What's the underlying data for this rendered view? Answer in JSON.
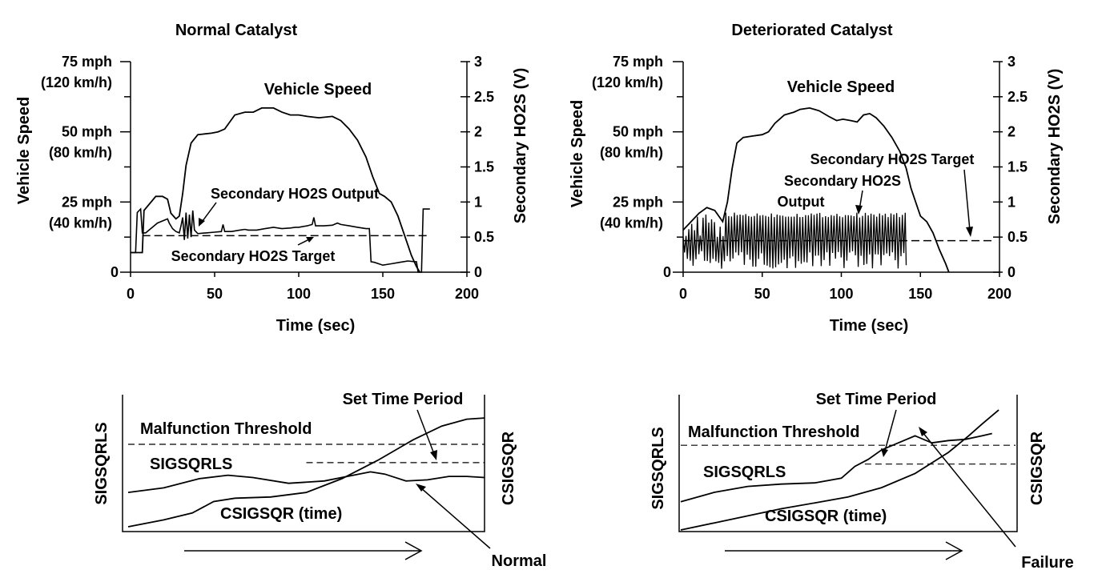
{
  "chart_data": [
    {
      "type": "line",
      "title": "Normal Catalyst",
      "xlabel": "Time (sec)",
      "ylabel_left": "Vehicle Speed",
      "ylabel_right": "Secondary HO2S (V)",
      "xlim": [
        0,
        200
      ],
      "ylim_right": [
        0,
        3
      ],
      "x_ticks": [
        "0",
        "50",
        "100",
        "150",
        "200"
      ],
      "left_ticks": [
        {
          "value": 75,
          "label": "75 mph",
          "sub": "(120 km/h)"
        },
        {
          "value": 50,
          "label": "50 mph",
          "sub": "(80 km/h)"
        },
        {
          "value": 25,
          "label": "25 mph",
          "sub": "(40 km/h)"
        },
        {
          "value": 0,
          "label": "0",
          "sub": ""
        }
      ],
      "right_ticks": [
        "0",
        "0.5",
        "1",
        "1.5",
        "2",
        "2.5",
        "3"
      ],
      "annotations": [
        "Vehicle Speed",
        "Secondary HO2S Output",
        "Secondary HO2S Target"
      ],
      "series": [
        {
          "name": "Vehicle Speed",
          "unit": "mph",
          "points": [
            [
              0,
              7
            ],
            [
              5,
              7
            ],
            [
              7,
              7
            ],
            [
              8,
              22
            ],
            [
              15,
              27
            ],
            [
              19,
              27
            ],
            [
              22,
              26
            ],
            [
              24,
              21
            ],
            [
              27,
              19
            ],
            [
              29,
              20
            ],
            [
              31,
              28
            ],
            [
              33,
              38
            ],
            [
              36,
              46
            ],
            [
              40,
              49
            ],
            [
              48,
              49.5
            ],
            [
              52,
              50
            ],
            [
              56,
              51
            ],
            [
              62,
              56
            ],
            [
              68,
              57
            ],
            [
              73,
              57
            ],
            [
              78,
              58.5
            ],
            [
              85,
              58.5
            ],
            [
              90,
              57
            ],
            [
              95,
              56
            ],
            [
              100,
              56
            ],
            [
              105,
              55.5
            ],
            [
              112,
              55
            ],
            [
              120,
              55.5
            ],
            [
              125,
              54
            ],
            [
              130,
              51
            ],
            [
              135,
              47
            ],
            [
              140,
              41
            ],
            [
              144,
              34
            ],
            [
              148,
              28
            ],
            [
              151,
              27
            ],
            [
              155,
              25
            ],
            [
              159,
              20
            ],
            [
              163,
              13
            ],
            [
              167,
              6
            ],
            [
              170,
              2
            ],
            [
              172,
              0
            ]
          ]
        },
        {
          "name": "Secondary HO2S Output",
          "unit": "V",
          "points": [
            [
              0,
              0.28
            ],
            [
              3,
              0.28
            ],
            [
              4,
              0.85
            ],
            [
              6,
              0.9
            ],
            [
              7,
              0.56
            ],
            [
              9,
              0.56
            ],
            [
              12,
              0.62
            ],
            [
              14,
              0.66
            ],
            [
              16,
              0.7
            ],
            [
              18,
              0.72
            ],
            [
              20,
              0.74
            ],
            [
              22,
              0.76
            ],
            [
              23,
              0.7
            ],
            [
              25,
              0.62
            ],
            [
              27,
              0.58
            ],
            [
              29,
              0.56
            ],
            [
              30,
              0.66
            ],
            [
              31,
              0.78
            ],
            [
              32,
              0.46
            ],
            [
              33,
              0.85
            ],
            [
              34,
              0.48
            ],
            [
              35,
              0.82
            ],
            [
              36,
              0.5
            ],
            [
              37,
              0.88
            ],
            [
              38,
              0.6
            ],
            [
              40,
              0.55
            ],
            [
              45,
              0.56
            ],
            [
              50,
              0.57
            ],
            [
              54,
              0.58
            ],
            [
              55,
              0.68
            ],
            [
              56,
              0.58
            ],
            [
              60,
              0.58
            ],
            [
              65,
              0.6
            ],
            [
              68,
              0.61
            ],
            [
              70,
              0.6
            ],
            [
              75,
              0.6
            ],
            [
              80,
              0.62
            ],
            [
              85,
              0.64
            ],
            [
              90,
              0.62
            ],
            [
              95,
              0.63
            ],
            [
              98,
              0.64
            ],
            [
              100,
              0.64
            ],
            [
              105,
              0.66
            ],
            [
              108,
              0.68
            ],
            [
              109,
              0.78
            ],
            [
              110,
              0.66
            ],
            [
              115,
              0.66
            ],
            [
              120,
              0.67
            ],
            [
              123,
              0.7
            ],
            [
              125,
              0.68
            ],
            [
              130,
              0.66
            ],
            [
              135,
              0.64
            ],
            [
              140,
              0.62
            ],
            [
              142,
              0.62
            ],
            [
              143,
              0.15
            ],
            [
              145,
              0.14
            ],
            [
              150,
              0.1
            ],
            [
              155,
              0.12
            ],
            [
              160,
              0.14
            ],
            [
              165,
              0.16
            ],
            [
              169,
              0.15
            ],
            [
              170,
              0.15
            ],
            [
              171,
              0.0
            ],
            [
              173,
              0.0
            ],
            [
              174,
              0.9
            ],
            [
              178,
              0.9
            ]
          ]
        },
        {
          "name": "Secondary HO2S Target",
          "unit": "V",
          "points": [
            [
              7,
              0.52
            ],
            [
              178,
              0.52
            ]
          ]
        }
      ]
    },
    {
      "type": "line",
      "title": "Deteriorated Catalyst",
      "xlabel": "Time (sec)",
      "ylabel_left": "Vehicle Speed",
      "ylabel_right": "Secondary HO2S (V)",
      "xlim": [
        0,
        200
      ],
      "ylim_right": [
        0,
        3
      ],
      "x_ticks": [
        "0",
        "50",
        "100",
        "150",
        "200"
      ],
      "left_ticks": [
        {
          "value": 75,
          "label": "75 mph",
          "sub": "(120 km/h)"
        },
        {
          "value": 50,
          "label": "50 mph",
          "sub": "(80 km/h)"
        },
        {
          "value": 25,
          "label": "25 mph",
          "sub": "(40 km/h)"
        },
        {
          "value": 0,
          "label": "0",
          "sub": ""
        }
      ],
      "right_ticks": [
        "0",
        "0.5",
        "1",
        "1.5",
        "2",
        "2.5",
        "3"
      ],
      "annotations": [
        "Vehicle Speed",
        "Secondary HO2S Target",
        "Secondary HO2S",
        "Output"
      ],
      "series": [
        {
          "name": "Vehicle Speed",
          "unit": "mph",
          "points": [
            [
              0,
              15
            ],
            [
              5,
              18
            ],
            [
              10,
              21
            ],
            [
              15,
              23
            ],
            [
              20,
              22
            ],
            [
              25,
              18
            ],
            [
              28,
              25
            ],
            [
              31,
              37
            ],
            [
              34,
              46
            ],
            [
              38,
              48
            ],
            [
              44,
              48.5
            ],
            [
              50,
              49
            ],
            [
              54,
              50
            ],
            [
              58,
              53
            ],
            [
              64,
              56
            ],
            [
              70,
              57
            ],
            [
              74,
              58
            ],
            [
              80,
              58.5
            ],
            [
              86,
              57.5
            ],
            [
              92,
              55.5
            ],
            [
              97,
              54
            ],
            [
              101,
              54.5
            ],
            [
              106,
              54
            ],
            [
              110,
              53.5
            ],
            [
              114,
              56
            ],
            [
              118,
              56.5
            ],
            [
              122,
              55
            ],
            [
              127,
              52
            ],
            [
              132,
              48
            ],
            [
              137,
              43
            ],
            [
              141,
              37
            ],
            [
              144,
              30
            ],
            [
              147,
              25
            ],
            [
              150,
              20
            ],
            [
              154,
              18
            ],
            [
              158,
              14
            ],
            [
              162,
              8
            ],
            [
              166,
              3
            ],
            [
              168,
              0
            ]
          ]
        },
        {
          "name": "Secondary HO2S Output",
          "unit": "V",
          "oscillating": true,
          "time_range": [
            0,
            141
          ],
          "range_v": [
            0.05,
            0.85
          ]
        },
        {
          "name": "Secondary HO2S Target",
          "unit": "V",
          "points": [
            [
              0,
              0.45
            ],
            [
              197,
              0.45
            ]
          ]
        }
      ]
    },
    {
      "type": "line",
      "title": "",
      "xlabel": "",
      "ylabel_left": "SIGSQRLS",
      "ylabel_right": "CSIGSQR",
      "labels": {
        "threshold": "Malfunction Threshold",
        "set_time": "Set Time Period",
        "sigsqrls": "SIGSQRLS",
        "csigsqr": "CSIGSQR (time)",
        "result": "Normal"
      },
      "series": [
        {
          "name": "SIGSQRLS",
          "points": [
            [
              0,
              0.3
            ],
            [
              0.1,
              0.34
            ],
            [
              0.2,
              0.42
            ],
            [
              0.28,
              0.45
            ],
            [
              0.35,
              0.43
            ],
            [
              0.45,
              0.38
            ],
            [
              0.55,
              0.4
            ],
            [
              0.68,
              0.48
            ],
            [
              0.72,
              0.46
            ],
            [
              0.78,
              0.4
            ],
            [
              0.84,
              0.41
            ],
            [
              0.9,
              0.44
            ],
            [
              0.95,
              0.44
            ],
            [
              1,
              0.43
            ]
          ]
        },
        {
          "name": "CSIGSQR (time)",
          "points": [
            [
              0,
              0
            ],
            [
              0.1,
              0.06
            ],
            [
              0.18,
              0.12
            ],
            [
              0.24,
              0.22
            ],
            [
              0.3,
              0.25
            ],
            [
              0.4,
              0.26
            ],
            [
              0.5,
              0.3
            ],
            [
              0.6,
              0.42
            ],
            [
              0.7,
              0.58
            ],
            [
              0.8,
              0.76
            ],
            [
              0.88,
              0.88
            ],
            [
              0.95,
              0.94
            ],
            [
              1,
              0.95
            ]
          ]
        },
        {
          "name": "Malfunction Threshold",
          "points": [
            [
              0,
              0.72
            ],
            [
              1,
              0.72
            ]
          ]
        },
        {
          "name": "Set Time Period",
          "points": [
            [
              0.5,
              0.56
            ],
            [
              1,
              0.56
            ]
          ]
        }
      ]
    },
    {
      "type": "line",
      "title": "",
      "xlabel": "",
      "ylabel_left": "SIGSQRLS",
      "ylabel_right": "CSIGSQR",
      "labels": {
        "threshold": "Malfunction Threshold",
        "set_time": "Set Time Period",
        "sigsqrls": "SIGSQRLS",
        "csigsqr": "CSIGSQR (time)",
        "result": "Failure"
      },
      "series": [
        {
          "name": "SIGSQRLS",
          "points": [
            [
              0,
              0.24
            ],
            [
              0.1,
              0.32
            ],
            [
              0.2,
              0.37
            ],
            [
              0.3,
              0.39
            ],
            [
              0.4,
              0.4
            ],
            [
              0.48,
              0.44
            ],
            [
              0.52,
              0.54
            ],
            [
              0.56,
              0.6
            ],
            [
              0.6,
              0.68
            ],
            [
              0.65,
              0.74
            ],
            [
              0.7,
              0.8
            ],
            [
              0.75,
              0.74
            ],
            [
              0.8,
              0.76
            ],
            [
              0.85,
              0.77
            ],
            [
              0.9,
              0.8
            ],
            [
              0.93,
              0.82
            ]
          ]
        },
        {
          "name": "CSIGSQR (time)",
          "points": [
            [
              0,
              0
            ],
            [
              0.1,
              0.06
            ],
            [
              0.2,
              0.12
            ],
            [
              0.3,
              0.18
            ],
            [
              0.4,
              0.23
            ],
            [
              0.5,
              0.28
            ],
            [
              0.6,
              0.36
            ],
            [
              0.7,
              0.48
            ],
            [
              0.8,
              0.66
            ],
            [
              0.86,
              0.8
            ],
            [
              0.9,
              0.9
            ],
            [
              0.95,
              1.02
            ]
          ]
        },
        {
          "name": "Malfunction Threshold",
          "points": [
            [
              0,
              0.72
            ],
            [
              1,
              0.72
            ]
          ]
        },
        {
          "name": "Set Time Period",
          "points": [
            [
              0.55,
              0.56
            ],
            [
              1,
              0.56
            ]
          ]
        }
      ]
    }
  ]
}
